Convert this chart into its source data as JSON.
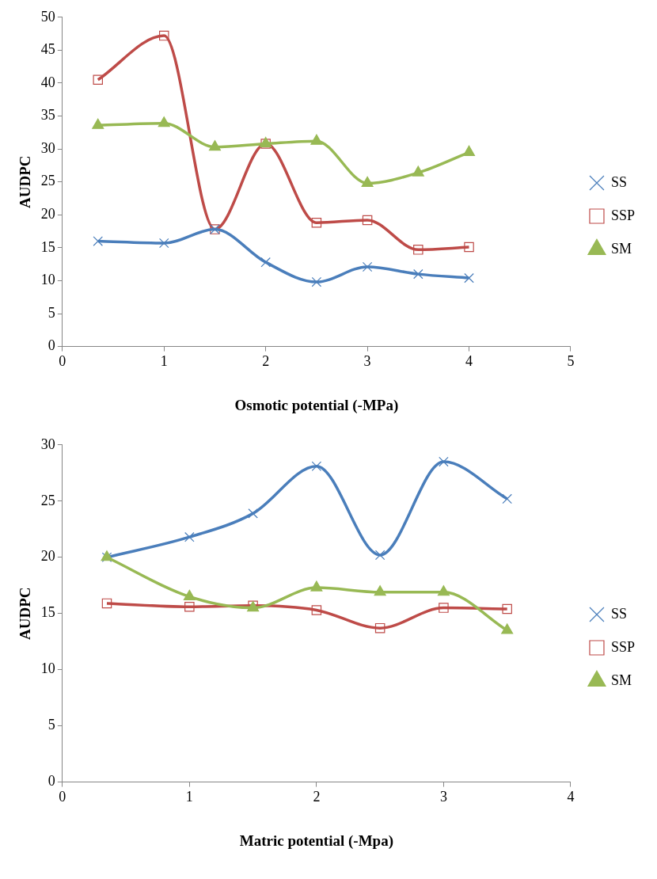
{
  "chart_data": [
    {
      "type": "line",
      "xlabel": "Osmotic potential (-MPa)",
      "ylabel": "AUDPC",
      "x": [
        0.35,
        1,
        1.5,
        2,
        2.5,
        3,
        3.5,
        4
      ],
      "xlim": [
        0,
        5
      ],
      "xticks": [
        0,
        1,
        2,
        3,
        4,
        5
      ],
      "ylim": [
        0,
        50
      ],
      "yticks": [
        0,
        5,
        10,
        15,
        20,
        25,
        30,
        35,
        40,
        45,
        50
      ],
      "grid": false,
      "legend": "right",
      "line_style": "solid",
      "series": [
        {
          "name": "SS",
          "color": "#4a7ebb",
          "marker": "cross",
          "values": [
            16,
            15.7,
            17.8,
            12.8,
            9.8,
            12.1,
            11,
            10.4
          ]
        },
        {
          "name": "SSP",
          "color": "#be4b48",
          "marker": "square",
          "values": [
            40.5,
            47.2,
            17.8,
            30.8,
            18.8,
            19.2,
            14.7,
            15.1
          ]
        },
        {
          "name": "SM",
          "color": "#98b954",
          "marker": "triangle",
          "values": [
            33.6,
            33.9,
            30.3,
            30.8,
            31.2,
            24.8,
            26.4,
            29.5
          ]
        }
      ]
    },
    {
      "type": "line",
      "xlabel": "Matric potential (-Mpa)",
      "ylabel": "AUDPC",
      "x": [
        0.35,
        1,
        1.5,
        2,
        2.5,
        3,
        3.5
      ],
      "xlim": [
        0,
        4
      ],
      "xticks": [
        0,
        1,
        2,
        3,
        4
      ],
      "ylim": [
        0,
        30
      ],
      "yticks": [
        0,
        5,
        10,
        15,
        20,
        25,
        30
      ],
      "grid": false,
      "legend": "right",
      "line_style": "solid",
      "series": [
        {
          "name": "SS",
          "color": "#4a7ebb",
          "marker": "cross",
          "values": [
            20,
            21.8,
            23.9,
            28.1,
            20.2,
            28.5,
            25.2
          ]
        },
        {
          "name": "SSP",
          "color": "#be4b48",
          "marker": "square",
          "values": [
            15.9,
            15.6,
            15.7,
            15.3,
            13.7,
            15.5,
            15.4
          ]
        },
        {
          "name": "SM",
          "color": "#98b954",
          "marker": "triangle",
          "values": [
            20,
            16.5,
            15.5,
            17.3,
            16.9,
            16.9,
            13.5
          ]
        }
      ]
    }
  ]
}
